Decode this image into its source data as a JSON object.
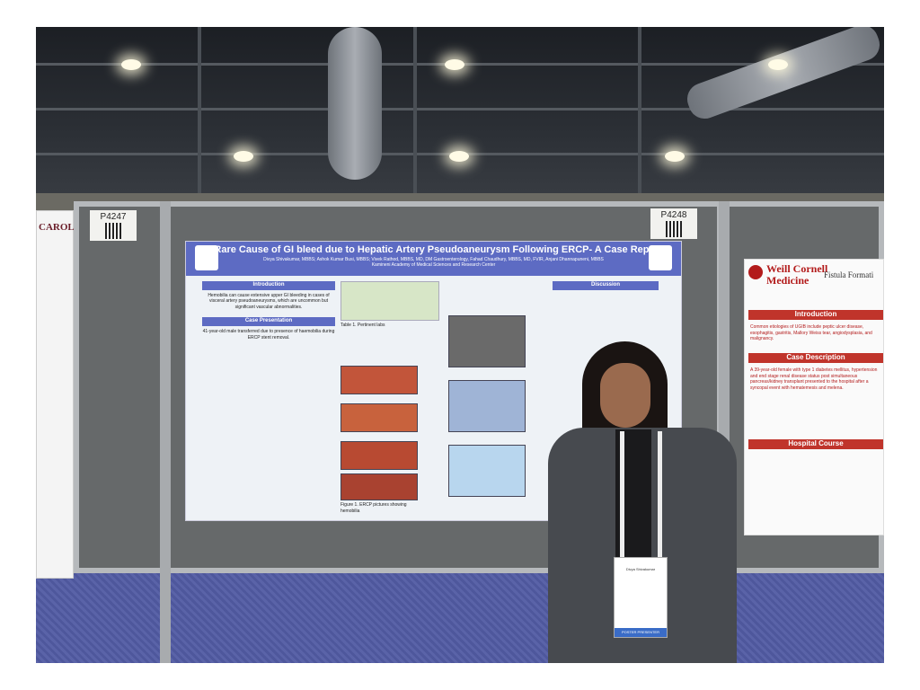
{
  "photo": {
    "booth_left": "P4247",
    "booth_right": "P4248",
    "left_poster_header": "CAROLINA"
  },
  "main_poster": {
    "title": "A Rare Cause of GI bleed due to Hepatic Artery Pseudoaneurysm Following ERCP- A Case Report",
    "authors": "Divya Shivakumar, MBBS; Ashok Kumar Busi, MBBS; Vivek Rathod, MBBS, MD, DM Gastroenterology, Fahad Chaudhury, MBBS, MD, FVIR, Anjani Dhannapuneni, MBBS",
    "institution": "Kamineni Academy of Medical Sciences and Research Center",
    "sections": {
      "introduction": "Introduction",
      "case_presentation": "Case Presentation",
      "discussion": "Discussion"
    },
    "intro_text": "Hemobilia can cause extensive upper GI bleeding in cases of visceral artery pseudoaneurysms, which are uncommon but significant vascular abnormalities.",
    "case_text": "41-year-old male transferred due to presence of haemobilia during ERCP stent removal.",
    "table_caption": "Table 1. Pertinent labs",
    "figure_caption": "Figure 1. ERCP pictures showing hemobilia"
  },
  "weill_poster": {
    "brand_line1": "Weill Cornell",
    "brand_line2": "Medicine",
    "title_fragment": "Fistula Formati",
    "sections": {
      "introduction": "Introduction",
      "case_description": "Case Description",
      "hospital_course": "Hospital Course"
    },
    "intro_text": "Common etiologies of UGIB include peptic ulcer disease, esophagitis, gastritis, Mallory Weiss tear, angiodysplasia, and malignancy.",
    "case_text": "A 39-year-old female with type 1 diabetes mellitus, hypertension and end stage renal disease status post simultaneous pancreas/kidney transplant presented to the hospital after a syncopal event with hematemesis and melena."
  },
  "badge": {
    "name": "Divya Shivakumar",
    "stripe": "POSTER PRESENTER"
  }
}
